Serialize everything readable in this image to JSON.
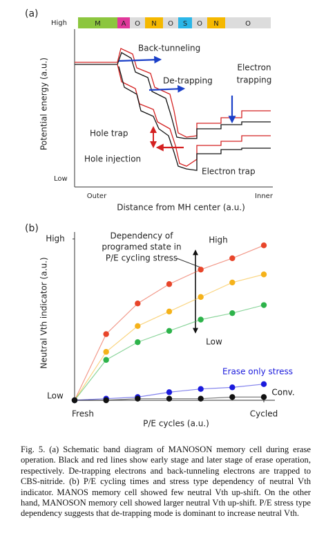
{
  "figure_a": {
    "label": "(a)",
    "y_high": "High",
    "y_low": "Low",
    "y_label": "Potential energy (a.u.)",
    "x_outer": "Outer",
    "x_inner": "Inner",
    "x_label": "Distance from MH center (a.u.)",
    "layers": [
      {
        "label": "M",
        "color": "#8cc63e"
      },
      {
        "label": "A",
        "color": "#e0389a"
      },
      {
        "label": "O",
        "color": "#dcdcdc"
      },
      {
        "label": "N",
        "color": "#f5b800"
      },
      {
        "label": "O",
        "color": "#dcdcdc"
      },
      {
        "label": "S",
        "color": "#2ab6e8"
      },
      {
        "label": "O",
        "color": "#dcdcdc"
      },
      {
        "label": "N",
        "color": "#f5b800"
      },
      {
        "label": "O",
        "color": "#dcdcdc"
      }
    ],
    "annotations": {
      "back_tunneling": "Back-tunneling",
      "de_trapping": "De-trapping",
      "electron_trapping": [
        "Electron",
        "trapping"
      ],
      "hole_trap": "Hole trap",
      "hole_injection": "Hole injection",
      "electron_trap": "Electron trap"
    }
  },
  "chart_data": {
    "type": "line",
    "label": "(b)",
    "y_label": "Neutral Vth indicator (a.u.)",
    "x_label": "P/E cycles (a.u.)",
    "x": [
      0,
      1,
      2,
      3,
      4,
      5,
      6
    ],
    "xlim": [
      0,
      6
    ],
    "xticks": [
      {
        "value": 0,
        "label": "Fresh"
      },
      {
        "value": 6,
        "label": "Cycled"
      }
    ],
    "ylim": [
      0,
      100
    ],
    "yticks": [
      {
        "value": 0,
        "label": "Low"
      },
      {
        "value": 100,
        "label": "High"
      }
    ],
    "series": [
      {
        "color": "#e8452a",
        "values": [
          0,
          41,
          60,
          72,
          81,
          88,
          96
        ]
      },
      {
        "color": "#f5b21a",
        "values": [
          0,
          30,
          46,
          55,
          64,
          73,
          78
        ]
      },
      {
        "color": "#2db34a",
        "values": [
          0,
          25,
          36,
          43,
          50,
          54,
          59
        ]
      },
      {
        "name": "Erase only stress",
        "color": "#1a1adc",
        "values": [
          0,
          1,
          2,
          5,
          7,
          8,
          10
        ]
      },
      {
        "name": "Conv.",
        "color": "#111111",
        "values": [
          0,
          0,
          1,
          1,
          1,
          2,
          2
        ]
      }
    ],
    "annotation_lines": [
      "Dependency of",
      "programed state in",
      "P/E cycling stress"
    ],
    "arrow_high": "High",
    "arrow_low": "Low"
  },
  "caption": "Fig. 5. (a) Schematic band diagram of MANOSON memory cell during erase operation. Black and red lines show early stage and later stage of erase operation, respectively. De-trapping electrons and back-tunneling electrons are trapped to CBS-nitride. (b) P/E cycling times and stress type dependency of neutral Vth indicator. MANOS memory cell showed few neutral Vth up-shift. On the other hand, MANOSON memory cell showed larger neutral Vth up-shift. P/E stress type dependency suggests that de-trapping mode is dominant to increase neutral Vth."
}
